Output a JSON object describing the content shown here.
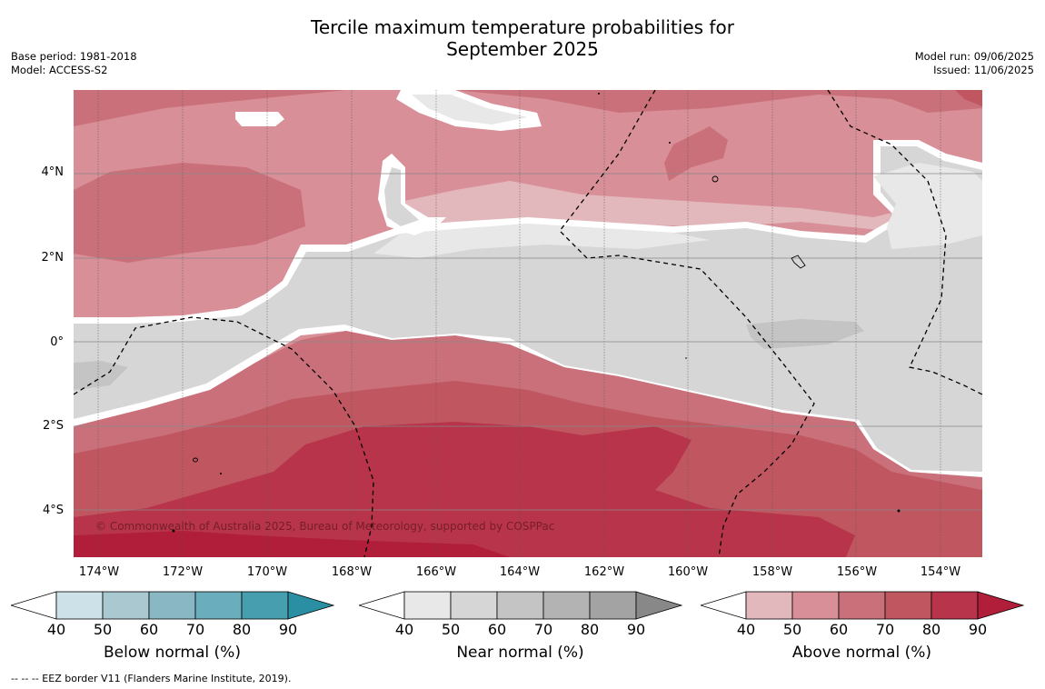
{
  "title": {
    "line1": "Tercile maximum temperature probabilities for",
    "line2": "September 2025"
  },
  "meta": {
    "base_period": "Base period: 1981-2018",
    "model": "Model: ACCESS-S2",
    "model_run": "Model run: 09/06/2025",
    "issued": "Issued: 11/06/2025"
  },
  "map": {
    "lat_labels": [
      "4°N",
      "2°N",
      "0°",
      "2°S",
      "4°S"
    ],
    "lon_labels": [
      "174°W",
      "172°W",
      "170°W",
      "168°W",
      "166°W",
      "164°W",
      "162°W",
      "160°W",
      "158°W",
      "156°W",
      "154°W"
    ],
    "copyright": "© Commonwealth of Australia 2025, Bureau of Meteorology, supported by COSPPac"
  },
  "colorbars": [
    {
      "title": "Below normal (%)",
      "ticks": [
        "40",
        "50",
        "60",
        "70",
        "80",
        "90"
      ],
      "colors": [
        "#ffffff",
        "#cce2e8",
        "#a9c8cf",
        "#89b7c4",
        "#6aadbc",
        "#479eae",
        "#2a8fa3"
      ]
    },
    {
      "title": "Near normal (%)",
      "ticks": [
        "40",
        "50",
        "60",
        "70",
        "80",
        "90"
      ],
      "colors": [
        "#ffffff",
        "#e8e8e8",
        "#d6d6d6",
        "#c4c4c4",
        "#b3b3b3",
        "#a3a3a3",
        "#888888"
      ]
    },
    {
      "title": "Above normal (%)",
      "ticks": [
        "40",
        "50",
        "60",
        "70",
        "80",
        "90"
      ],
      "colors": [
        "#ffffff",
        "#e2b8bd",
        "#d88f97",
        "#ca707a",
        "#c0565f",
        "#b8344a",
        "#b01e3a"
      ]
    }
  ],
  "footer": "--  --  -- EEZ border V11 (Flanders Marine Institute, 2019)."
}
